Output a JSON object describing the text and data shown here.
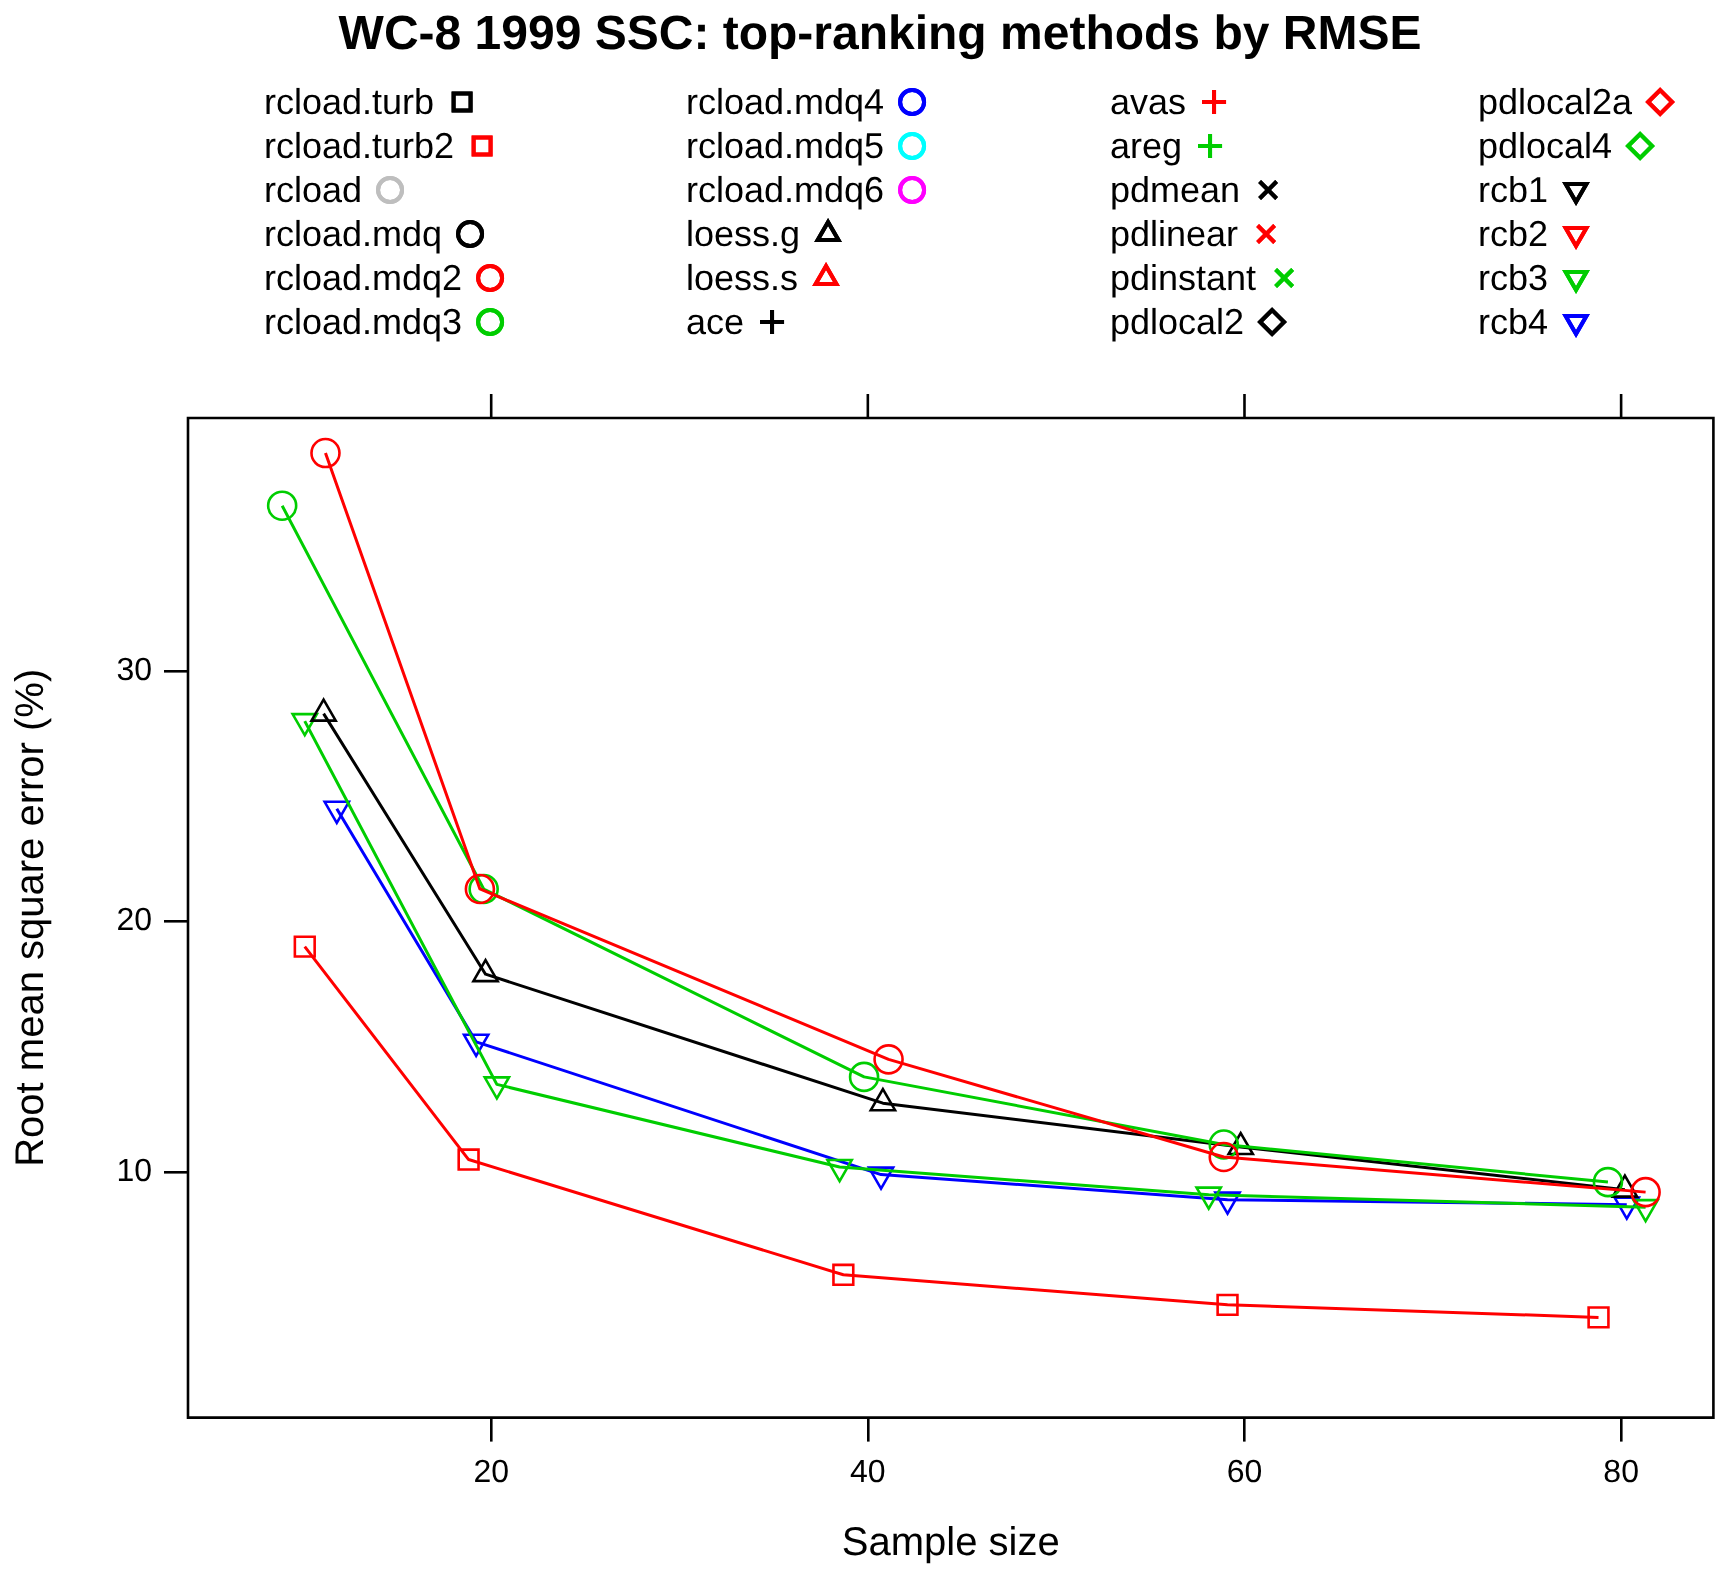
{
  "chart_data": {
    "type": "line",
    "title": "WC-8 1999 SSC: top-ranking methods by RMSE",
    "xlabel": "Sample size",
    "ylabel": "Root mean square error (%)",
    "xlim": [
      3.9,
      84.9
    ],
    "xticks": [
      20,
      40,
      60,
      80
    ],
    "ylim": [
      0.2,
      40.1
    ],
    "yticks": [
      10,
      20,
      30
    ],
    "grid": false,
    "legend": "top",
    "line_style": "solid",
    "series": [
      {
        "name": "rcload.turb",
        "color": "#000000",
        "marker": "square"
      },
      {
        "name": "rcload.turb2",
        "color": "#ff0000",
        "marker": "square",
        "x": [
          10.1,
          18.8,
          38.7,
          59.1,
          78.8
        ],
        "values": [
          19.0,
          10.5,
          5.9,
          4.7,
          4.2
        ]
      },
      {
        "name": "rcload",
        "color": "#bebebe",
        "marker": "circle"
      },
      {
        "name": "rcload.mdq",
        "color": "#000000",
        "marker": "circle"
      },
      {
        "name": "rcload.mdq2",
        "color": "#ff0000",
        "marker": "circle",
        "x": [
          11.2,
          19.4,
          41.1,
          58.9,
          81.3
        ],
        "values": [
          38.7,
          21.3,
          14.5,
          10.6,
          9.2
        ]
      },
      {
        "name": "rcload.mdq3",
        "color": "#00cd00",
        "marker": "circle",
        "x": [
          8.9,
          19.6,
          39.8,
          58.9,
          79.3
        ],
        "values": [
          36.6,
          21.3,
          13.8,
          11.1,
          9.6
        ]
      },
      {
        "name": "rcload.mdq4",
        "color": "#0000ff",
        "marker": "circle"
      },
      {
        "name": "rcload.mdq5",
        "color": "#00ffff",
        "marker": "circle"
      },
      {
        "name": "rcload.mdq6",
        "color": "#ff00ff",
        "marker": "circle"
      },
      {
        "name": "loess.g",
        "color": "#000000",
        "marker": "triangle",
        "x": [
          11.1,
          19.7,
          40.8,
          59.8,
          80.2
        ],
        "values": [
          28.3,
          17.9,
          12.75,
          11.0,
          9.3
        ]
      },
      {
        "name": "loess.s",
        "color": "#ff0000",
        "marker": "triangle"
      },
      {
        "name": "ace",
        "color": "#000000",
        "marker": "cross"
      },
      {
        "name": "avas",
        "color": "#ff0000",
        "marker": "cross"
      },
      {
        "name": "areg",
        "color": "#00cd00",
        "marker": "cross"
      },
      {
        "name": "pdmean",
        "color": "#000000",
        "marker": "x"
      },
      {
        "name": "pdlinear",
        "color": "#ff0000",
        "marker": "x"
      },
      {
        "name": "pdinstant",
        "color": "#00cd00",
        "marker": "x"
      },
      {
        "name": "pdlocal2",
        "color": "#000000",
        "marker": "diamond"
      },
      {
        "name": "pdlocal2a",
        "color": "#ff0000",
        "marker": "diamond"
      },
      {
        "name": "pdlocal4",
        "color": "#00cd00",
        "marker": "diamond"
      },
      {
        "name": "rcb1",
        "color": "#000000",
        "marker": "triangle-down"
      },
      {
        "name": "rcb2",
        "color": "#ff0000",
        "marker": "triangle-down"
      },
      {
        "name": "rcb3",
        "color": "#00cd00",
        "marker": "triangle-down",
        "x": [
          10.1,
          20.3,
          38.5,
          58.1,
          81.3
        ],
        "values": [
          28.0,
          13.5,
          10.2,
          9.1,
          8.6
        ]
      },
      {
        "name": "rcb4",
        "color": "#0000ff",
        "marker": "triangle-down",
        "x": [
          11.8,
          19.2,
          40.7,
          59.1,
          80.3
        ],
        "values": [
          24.5,
          15.2,
          9.9,
          8.9,
          8.7
        ]
      }
    ]
  }
}
